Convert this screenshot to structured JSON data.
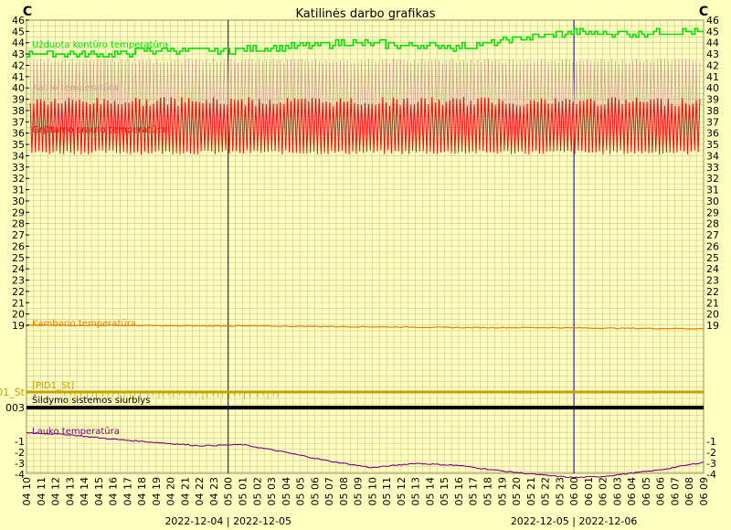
{
  "chart_data": {
    "type": "line",
    "title": "Katilinės darbo grafikas",
    "unit_left": "C",
    "unit_right": "C",
    "y_ticks": [
      46,
      45,
      44,
      43,
      42,
      41,
      40,
      39,
      38,
      37,
      36,
      35,
      34,
      33,
      32,
      31,
      30,
      29,
      28,
      27,
      26,
      25,
      24,
      23,
      22,
      21,
      20,
      19
    ],
    "lower_y_ticks": [
      -1,
      -2,
      -3,
      -4
    ],
    "x_ticks": [
      "04 10",
      "04 11",
      "04 12",
      "04 13",
      "04 14",
      "04 15",
      "04 16",
      "04 17",
      "04 18",
      "04 19",
      "04 20",
      "04 21",
      "04 22",
      "04 23",
      "05 00",
      "05 01",
      "05 02",
      "05 03",
      "05 04",
      "05 05",
      "05 06",
      "05 07",
      "05 08",
      "05 09",
      "05 10",
      "05 11",
      "05 12",
      "05 13",
      "05 14",
      "05 15",
      "05 16",
      "05 17",
      "05 18",
      "05 19",
      "05 20",
      "05 21",
      "05 22",
      "05 23",
      "06 00",
      "06 01",
      "06 02",
      "06 03",
      "06 04",
      "06 05",
      "06 06",
      "06 07",
      "06 08",
      "06 09"
    ],
    "date_labels": [
      "2022-12-04 | 2022-12-05",
      "2022-12-05 | 2022-12-06"
    ],
    "series": [
      {
        "name": "Užduota kontūro temperatūra",
        "color": "#00E000",
        "points": [
          [
            0,
            43.1
          ],
          [
            6,
            43.0
          ],
          [
            10,
            43.4
          ],
          [
            14,
            43.3
          ],
          [
            18,
            43.6
          ],
          [
            22,
            44.0
          ],
          [
            26,
            43.8
          ],
          [
            30,
            43.6
          ],
          [
            34,
            44.3
          ],
          [
            38,
            44.9
          ],
          [
            42,
            44.8
          ],
          [
            46,
            45.0
          ],
          [
            47,
            44.9
          ]
        ]
      },
      {
        "name": "Katilo temperatūra",
        "color": "#D0A090",
        "min": 34.5,
        "max": 42.6
      },
      {
        "name": "Grįžtamo srauto temperatūra",
        "color": "#FF0000",
        "min": 34.1,
        "max": 39.2
      },
      {
        "name": "Kambario temperatūra",
        "color": "#E08000",
        "points": [
          [
            0,
            19.0
          ],
          [
            6,
            19.0
          ],
          [
            10,
            18.95
          ],
          [
            14,
            18.95
          ],
          [
            20,
            18.9
          ],
          [
            26,
            18.85
          ],
          [
            30,
            18.8
          ],
          [
            36,
            18.8
          ],
          [
            40,
            18.75
          ],
          [
            47,
            18.7
          ]
        ]
      },
      {
        "name": "[PID1_St]",
        "color": "#C8A000"
      },
      {
        "name": "Šildymo sistemos siurblys",
        "color": "#000000"
      },
      {
        "name": "Lauko temperatūra",
        "color": "#800080",
        "points": [
          [
            0,
            -0.2
          ],
          [
            3,
            -0.4
          ],
          [
            6,
            -0.8
          ],
          [
            9,
            -1.1
          ],
          [
            12,
            -1.4
          ],
          [
            15,
            -1.3
          ],
          [
            18,
            -2.0
          ],
          [
            21,
            -2.8
          ],
          [
            24,
            -3.4
          ],
          [
            27,
            -3.0
          ],
          [
            30,
            -3.2
          ],
          [
            33,
            -3.7
          ],
          [
            36,
            -4.1
          ],
          [
            38,
            -4.3
          ],
          [
            40,
            -4.2
          ],
          [
            44,
            -3.6
          ],
          [
            47,
            -2.9
          ]
        ]
      }
    ],
    "lower_left_labels": [
      "01_St",
      "003"
    ]
  }
}
